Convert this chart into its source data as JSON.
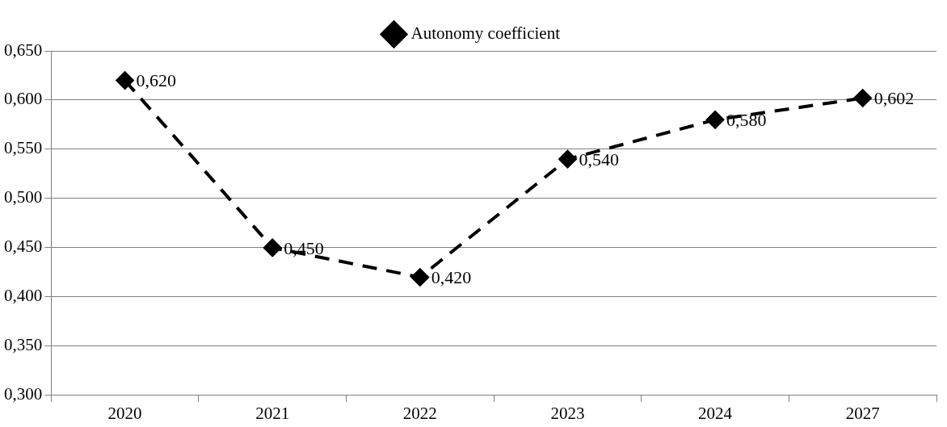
{
  "chart_data": {
    "type": "line",
    "categories": [
      "2020",
      "2021",
      "2022",
      "2023",
      "2024",
      "2027"
    ],
    "series": [
      {
        "name": "Autonomy coefficient",
        "color": "#000000",
        "values": [
          0.62,
          0.45,
          0.42,
          0.54,
          0.58,
          0.602
        ],
        "value_labels": [
          "0,620",
          "0,450",
          "0,420",
          "0,540",
          "0,580",
          "0,602"
        ]
      }
    ],
    "ylim": [
      0.3,
      0.65
    ],
    "yticks": [
      {
        "value": 0.3,
        "label": "0,300"
      },
      {
        "value": 0.35,
        "label": "0,350"
      },
      {
        "value": 0.4,
        "label": "0,400"
      },
      {
        "value": 0.45,
        "label": "0,450"
      },
      {
        "value": 0.5,
        "label": "0,500"
      },
      {
        "value": 0.55,
        "label": "0,550"
      },
      {
        "value": 0.6,
        "label": "0,600"
      },
      {
        "value": 0.65,
        "label": "0,650"
      }
    ],
    "grid": "y",
    "legend": "top",
    "marker": "diamond",
    "line_style": "dashed"
  }
}
